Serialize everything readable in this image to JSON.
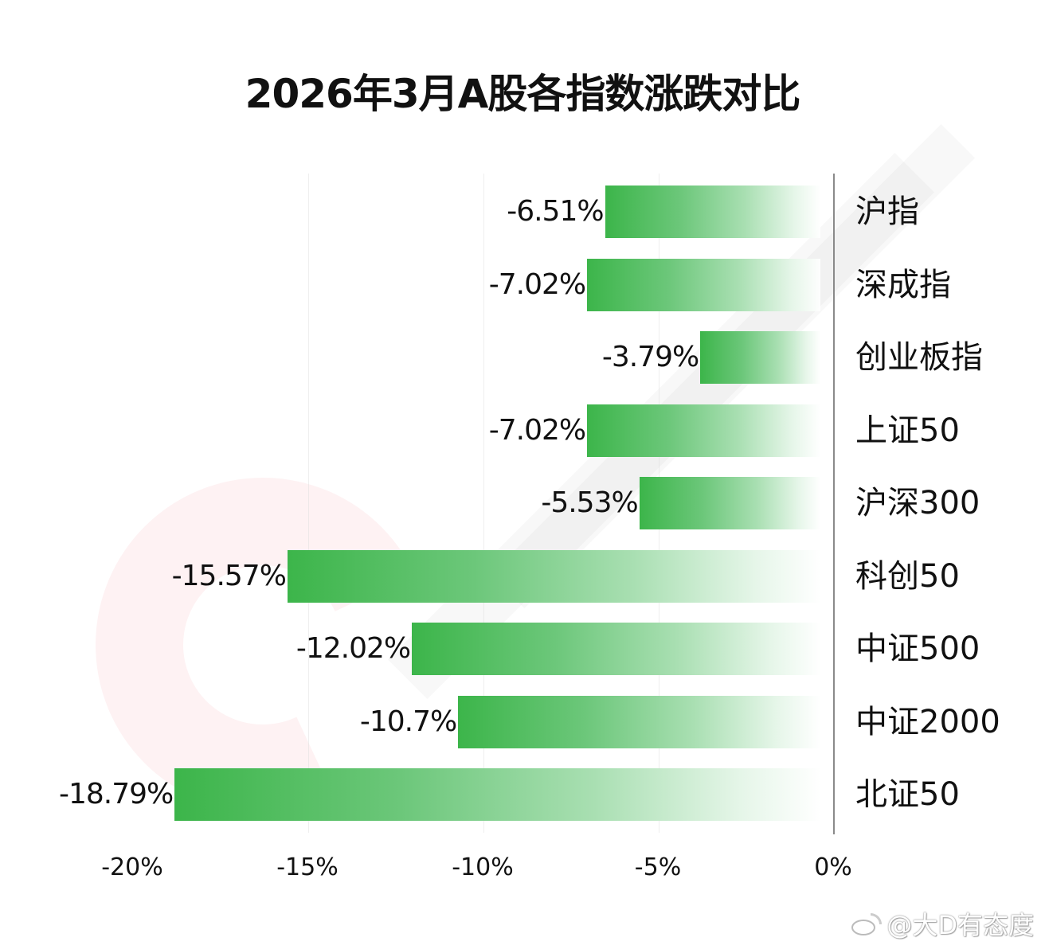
{
  "title": "2026年3月A股各指数涨跌对比",
  "chart_data": {
    "type": "bar",
    "orientation": "horizontal",
    "title": "2026年3月A股各指数涨跌对比",
    "categories": [
      "沪指",
      "深成指",
      "创业板指",
      "上证50",
      "沪深300",
      "科创50",
      "中证500",
      "中证2000",
      "北证50"
    ],
    "values": [
      -6.51,
      -7.02,
      -3.79,
      -7.02,
      -5.53,
      -15.57,
      -12.02,
      -10.7,
      -18.79
    ],
    "value_labels": [
      "-6.51%",
      "-7.02%",
      "-3.79%",
      "-7.02%",
      "-5.53%",
      "-15.57%",
      "-12.02%",
      "-10.7%",
      "-18.79%"
    ],
    "xlabel": "",
    "ylabel": "",
    "xlim": [
      -20,
      0
    ],
    "x_ticks": [
      -20,
      -15,
      -10,
      -5,
      0
    ],
    "x_tick_labels": [
      "-20%",
      "-15%",
      "-10%",
      "-5%",
      "0%"
    ],
    "grid": true,
    "legend": null,
    "bar_color": "#3cb54a",
    "bar_style": "gradient fading to white toward 0%",
    "category_label_position": "right of zero axis"
  },
  "credit": {
    "handle": "@大D有态度",
    "icon": "weibo-icon"
  }
}
